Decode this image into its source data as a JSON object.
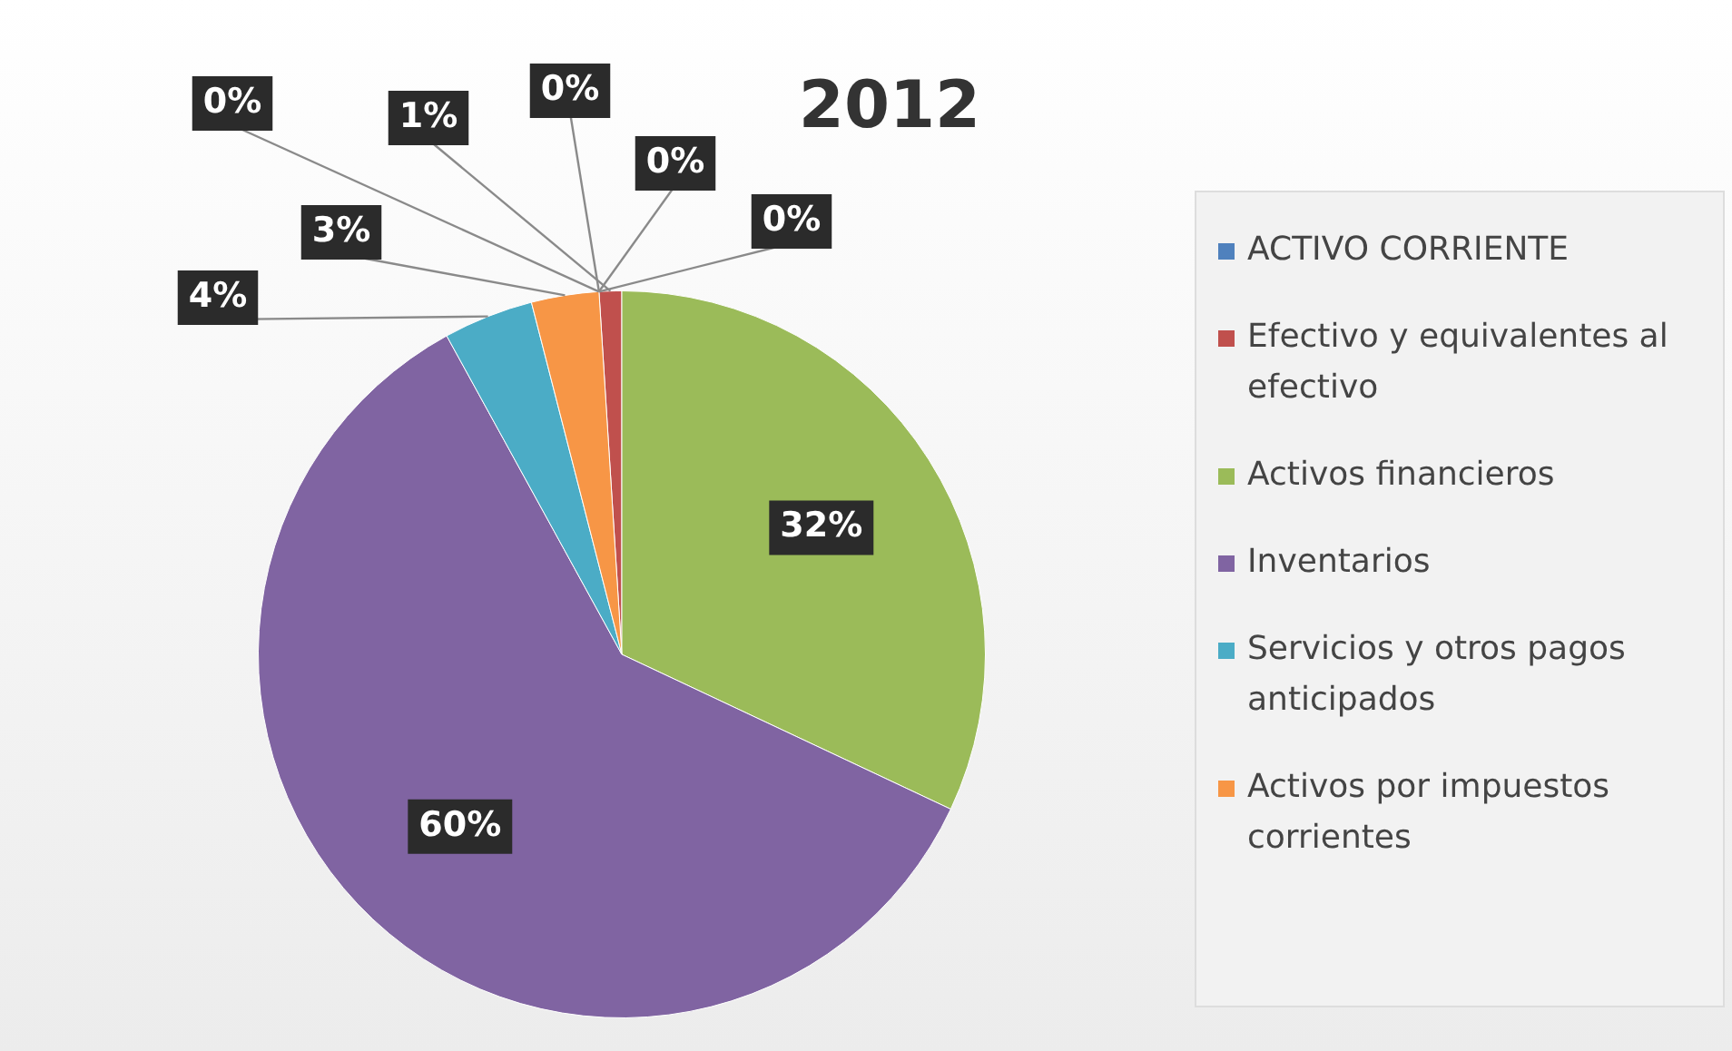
{
  "chart_data": {
    "type": "pie",
    "title": "2012",
    "categories": [
      "ACTIVO CORRIENTE",
      "Efectivo y equivalentes al efectivo",
      "Activos financieros",
      "Inventarios",
      "Servicios y otros pagos anticipados",
      "Activos por impuestos corrientes",
      null,
      null,
      null
    ],
    "values": [
      0,
      1,
      32,
      60,
      4,
      3,
      0,
      0,
      0
    ],
    "colors": [
      "#4f81bd",
      "#c0504d",
      "#9bbb59",
      "#8064a2",
      "#4bacc6",
      "#f79646",
      "#2c4d75",
      "#772c2a",
      "#5f7530"
    ],
    "value_labels": [
      "0%",
      "1%",
      "32%",
      "60%",
      "4%",
      "3%",
      "0%",
      "0%",
      "0%"
    ],
    "legend": "right"
  }
}
